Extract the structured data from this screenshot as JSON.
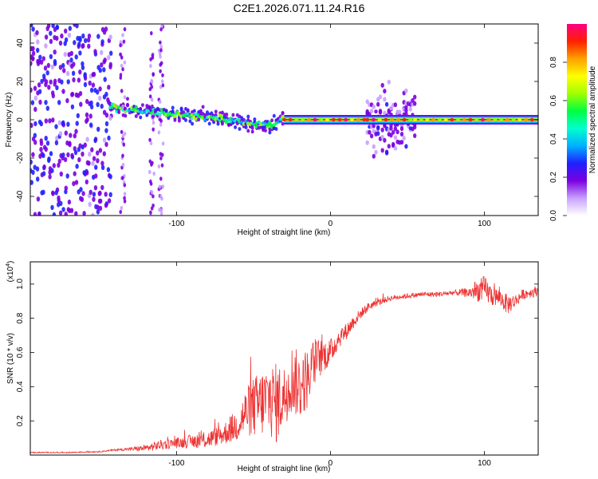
{
  "title": "C2E1.2026.071.11.24.R16",
  "chart_data": [
    {
      "type": "heatmap",
      "name": "spectrogram",
      "xlabel": "Height of straight line (km)",
      "ylabel": "Frequency (Hz)",
      "xlim": [
        -195,
        135
      ],
      "ylim": [
        -50,
        50
      ],
      "x_ticks": [
        -100,
        0,
        100
      ],
      "y_ticks": [
        -40,
        -20,
        0,
        20,
        40
      ],
      "colorbar": {
        "label": "Normalized spectral amplitude",
        "range": [
          0.0,
          1.0
        ],
        "ticks": [
          "0.0",
          "0.2",
          "0.4",
          "0.6",
          "0.8"
        ],
        "colors": [
          "#ffffff",
          "#c8a0ff",
          "#7b00e0",
          "#2020ff",
          "#00b0ff",
          "#00ffd0",
          "#00ff40",
          "#a0ff00",
          "#ffff00",
          "#ffa000",
          "#ff2000",
          "#ff0080"
        ]
      },
      "carrier_track": [
        {
          "x": -143,
          "f": 7
        },
        {
          "x": -130,
          "f": 5
        },
        {
          "x": -115,
          "f": 4
        },
        {
          "x": -100,
          "f": 3
        },
        {
          "x": -80,
          "f": 1
        },
        {
          "x": -60,
          "f": -1
        },
        {
          "x": -45,
          "f": -3
        },
        {
          "x": -38,
          "f": -3
        },
        {
          "x": -30,
          "f": 1
        },
        {
          "x": 0,
          "f": 0
        },
        {
          "x": 135,
          "f": 0
        }
      ],
      "regions": [
        {
          "x_start": -195,
          "x_end": -143,
          "kind": "noise",
          "spread": 50
        },
        {
          "x_start": -143,
          "x_end": -30,
          "kind": "signal_noisy",
          "spread": 8
        },
        {
          "x_start": -30,
          "x_end": 24,
          "kind": "signal_clean",
          "spread": 2
        },
        {
          "x_start": 24,
          "x_end": 55,
          "kind": "signal_burst",
          "spread": 35
        },
        {
          "x_start": 55,
          "x_end": 135,
          "kind": "signal_clean",
          "spread": 2
        }
      ],
      "noise_columns": [
        {
          "x": -135,
          "spread": 50
        },
        {
          "x": -116,
          "spread": 50
        },
        {
          "x": -110,
          "spread": 50
        }
      ]
    },
    {
      "type": "line",
      "name": "snr",
      "xlabel": "Height of straight line (km)",
      "ylabel": "SNR (10 * v/v)",
      "y_multiplier": "(x10^4)",
      "y_multiplier_base": "(x10",
      "y_multiplier_exp": "4",
      "y_multiplier_close": ")",
      "xlim": [
        -195,
        135
      ],
      "ylim": [
        0,
        1.13
      ],
      "x_ticks": [
        -100,
        0,
        100
      ],
      "y_ticks": [
        0.2,
        0.4,
        0.6,
        0.8,
        1.0
      ],
      "color": "#ee3333",
      "series": [
        {
          "name": "SNR",
          "x": [
            -195,
            -170,
            -150,
            -140,
            -130,
            -120,
            -110,
            -100,
            -90,
            -80,
            -70,
            -60,
            -55,
            -50,
            -45,
            -40,
            -35,
            -30,
            -25,
            -20,
            -15,
            -10,
            -5,
            0,
            5,
            10,
            15,
            20,
            25,
            30,
            40,
            50,
            60,
            70,
            80,
            90,
            95,
            100,
            105,
            110,
            115,
            120,
            125,
            130,
            135
          ],
          "y": [
            0.015,
            0.015,
            0.02,
            0.03,
            0.035,
            0.04,
            0.06,
            0.07,
            0.08,
            0.09,
            0.12,
            0.18,
            0.25,
            0.28,
            0.3,
            0.33,
            0.3,
            0.35,
            0.45,
            0.4,
            0.45,
            0.55,
            0.58,
            0.6,
            0.68,
            0.72,
            0.78,
            0.83,
            0.87,
            0.89,
            0.92,
            0.93,
            0.94,
            0.94,
            0.95,
            0.95,
            0.96,
            0.97,
            0.93,
            0.92,
            0.88,
            0.9,
            0.94,
            0.95,
            0.96
          ],
          "noise": [
            0.003,
            0.003,
            0.004,
            0.005,
            0.01,
            0.02,
            0.03,
            0.03,
            0.04,
            0.05,
            0.06,
            0.1,
            0.14,
            0.18,
            0.2,
            0.22,
            0.24,
            0.18,
            0.2,
            0.2,
            0.18,
            0.14,
            0.1,
            0.08,
            0.06,
            0.05,
            0.04,
            0.03,
            0.025,
            0.02,
            0.015,
            0.015,
            0.015,
            0.015,
            0.015,
            0.03,
            0.06,
            0.08,
            0.06,
            0.05,
            0.06,
            0.04,
            0.03,
            0.03,
            0.03
          ]
        }
      ]
    }
  ]
}
